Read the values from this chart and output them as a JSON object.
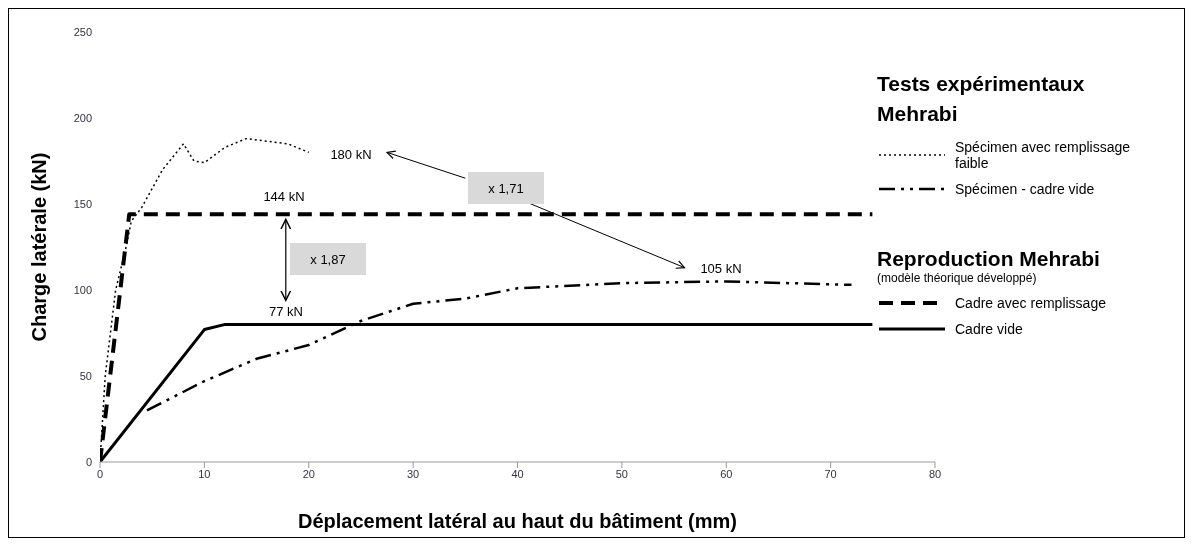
{
  "chart_data": {
    "type": "line",
    "xlabel": "Déplacement latéral au haut du bâtiment (mm)",
    "ylabel": "Charge latérale (kN)",
    "xlim": [
      0,
      80
    ],
    "xticks": [
      0,
      10,
      20,
      30,
      40,
      50,
      60,
      70,
      80
    ],
    "ylim": [
      0,
      250
    ],
    "yticks": [
      0,
      50,
      100,
      150,
      200,
      250
    ],
    "legend": "right",
    "marker": "none",
    "series": [
      {
        "name": "Spécimen avec remplissage faible",
        "color": "#000000",
        "line_style": "dotted",
        "x": [
          0,
          0.5,
          1.5,
          2.5,
          3,
          4,
          6,
          8,
          9,
          10,
          12,
          14,
          18,
          20
        ],
        "values": [
          0,
          50,
          100,
          125,
          140,
          148,
          170,
          185,
          175,
          174,
          183,
          188,
          185,
          180
        ]
      },
      {
        "name": "Spécimen - cadre vide",
        "color": "#000000",
        "line_style": "dashdot",
        "x": [
          4.5,
          10,
          15,
          20,
          25,
          30,
          35,
          40,
          50,
          60,
          72
        ],
        "values": [
          30,
          47,
          60,
          68,
          82,
          92,
          95,
          101,
          104,
          105,
          103
        ]
      },
      {
        "name": "Cadre avec remplissage",
        "color": "#000000",
        "line_style": "dashed",
        "x": [
          0,
          2.8,
          74
        ],
        "values": [
          0,
          144,
          144
        ]
      },
      {
        "name": "Cadre vide",
        "color": "#000000",
        "line_style": "solid",
        "x": [
          0,
          10,
          12,
          74
        ],
        "values": [
          0,
          77,
          80,
          80
        ]
      }
    ],
    "annotations": [
      "Tests expérimentaux Mehrabi",
      "Reproduction Mehrabi",
      "(modèle théorique développé)",
      "180 kN",
      "144 kN",
      "77 kN",
      "105 kN",
      "x 1,87",
      "x 1,71"
    ]
  }
}
